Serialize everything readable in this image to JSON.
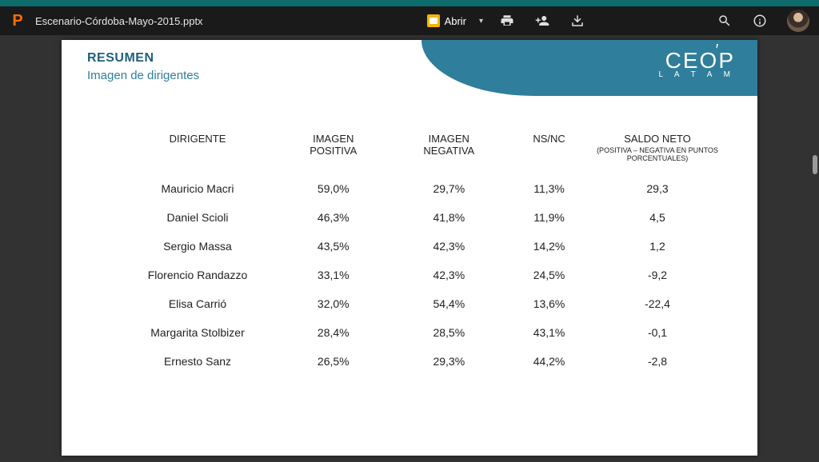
{
  "toolbar": {
    "app_icon_letter": "P",
    "filename": "Escenario-Córdoba-Mayo-2015.pptx",
    "open_label": "Abrir"
  },
  "slide": {
    "logo_main": "CEOP",
    "logo_sub": "L A T A M",
    "title1": "RESUMEN",
    "title2": "Imagen de dirigentes",
    "table": {
      "columns": {
        "c0": "DIRIGENTE",
        "c1_l1": "IMAGEN",
        "c1_l2": "POSITIVA",
        "c2_l1": "IMAGEN",
        "c2_l2": "NEGATIVA",
        "c3": "NS/NC",
        "c4_main": "SALDO NETO",
        "c4_sub": "(POSITIVA – NEGATIVA EN PUNTOS PORCENTUALES)"
      },
      "rows": [
        {
          "name": "Mauricio Macri",
          "pos": "59,0%",
          "neg": "29,7%",
          "ns": "11,3%",
          "saldo": "29,3",
          "saldo_negative": false
        },
        {
          "name": "Daniel Scioli",
          "pos": "46,3%",
          "neg": "41,8%",
          "ns": "11,9%",
          "saldo": "4,5",
          "saldo_negative": false
        },
        {
          "name": "Sergio Massa",
          "pos": "43,5%",
          "neg": "42,3%",
          "ns": "14,2%",
          "saldo": "1,2",
          "saldo_negative": false
        },
        {
          "name": "Florencio Randazzo",
          "pos": "33,1%",
          "neg": "42,3%",
          "ns": "24,5%",
          "saldo": "-9,2",
          "saldo_negative": true
        },
        {
          "name": "Elisa Carrió",
          "pos": "32,0%",
          "neg": "54,4%",
          "ns": "13,6%",
          "saldo": "-22,4",
          "saldo_negative": true
        },
        {
          "name": "Margarita Stolbizer",
          "pos": "28,4%",
          "neg": "28,5%",
          "ns": "43,1%",
          "saldo": "-0,1",
          "saldo_negative": true
        },
        {
          "name": "Ernesto Sanz",
          "pos": "26,5%",
          "neg": "29,3%",
          "ns": "44,2%",
          "saldo": "-2,8",
          "saldo_negative": true
        }
      ]
    }
  },
  "colors": {
    "banner": "#2f7e9b",
    "title_primary": "#1f5f7a",
    "negative": "#d43a2f",
    "background": "#323232"
  }
}
